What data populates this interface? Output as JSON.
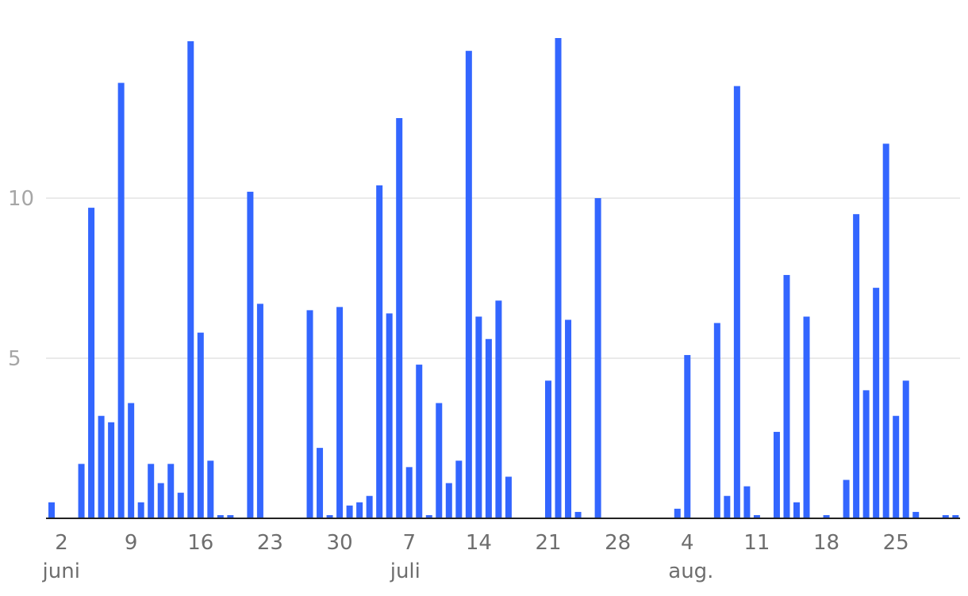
{
  "chart_data": {
    "type": "bar",
    "start_date": "2025-06-01",
    "x_ticks": [
      "2",
      "9",
      "16",
      "23",
      "30",
      "7",
      "14",
      "21",
      "28",
      "4",
      "11",
      "18",
      "25"
    ],
    "month_labels": [
      "juni",
      "juli",
      "aug."
    ],
    "y_ticks": [
      "5",
      "10"
    ],
    "ylim": [
      0,
      15
    ],
    "grid": true,
    "bar_color": "#3366ff",
    "x": [
      "2025-06-01",
      "2025-06-02",
      "2025-06-03",
      "2025-06-04",
      "2025-06-05",
      "2025-06-06",
      "2025-06-07",
      "2025-06-08",
      "2025-06-09",
      "2025-06-10",
      "2025-06-11",
      "2025-06-12",
      "2025-06-13",
      "2025-06-14",
      "2025-06-15",
      "2025-06-16",
      "2025-06-17",
      "2025-06-18",
      "2025-06-19",
      "2025-06-20",
      "2025-06-21",
      "2025-06-22",
      "2025-06-23",
      "2025-06-24",
      "2025-06-25",
      "2025-06-26",
      "2025-06-27",
      "2025-06-28",
      "2025-06-29",
      "2025-06-30",
      "2025-07-01",
      "2025-07-02",
      "2025-07-03",
      "2025-07-04",
      "2025-07-05",
      "2025-07-06",
      "2025-07-07",
      "2025-07-08",
      "2025-07-09",
      "2025-07-10",
      "2025-07-11",
      "2025-07-12",
      "2025-07-13",
      "2025-07-14",
      "2025-07-15",
      "2025-07-16",
      "2025-07-17",
      "2025-07-18",
      "2025-07-19",
      "2025-07-20",
      "2025-07-21",
      "2025-07-22",
      "2025-07-23",
      "2025-07-24",
      "2025-07-25",
      "2025-07-26",
      "2025-07-27",
      "2025-07-28",
      "2025-07-29",
      "2025-07-30",
      "2025-07-31",
      "2025-08-01",
      "2025-08-02",
      "2025-08-03",
      "2025-08-04",
      "2025-08-05",
      "2025-08-06",
      "2025-08-07",
      "2025-08-08",
      "2025-08-09",
      "2025-08-10",
      "2025-08-11",
      "2025-08-12",
      "2025-08-13",
      "2025-08-14",
      "2025-08-15",
      "2025-08-16",
      "2025-08-17",
      "2025-08-18",
      "2025-08-19",
      "2025-08-20",
      "2025-08-21",
      "2025-08-22",
      "2025-08-23",
      "2025-08-24",
      "2025-08-25",
      "2025-08-26",
      "2025-08-27",
      "2025-08-28",
      "2025-08-29",
      "2025-08-30",
      "2025-08-31"
    ],
    "values": [
      0.5,
      0,
      0,
      1.7,
      9.7,
      3.2,
      3.0,
      13.6,
      3.6,
      0.5,
      1.7,
      1.1,
      1.7,
      0.8,
      14.9,
      5.8,
      1.8,
      0.1,
      0.1,
      0,
      10.2,
      6.7,
      0,
      0,
      0,
      0,
      6.5,
      2.2,
      0.1,
      6.6,
      0.4,
      0.5,
      0.7,
      10.4,
      6.4,
      12.5,
      1.6,
      4.8,
      0.1,
      3.6,
      1.1,
      1.8,
      14.6,
      6.3,
      5.6,
      6.8,
      1.3,
      0,
      0,
      0,
      4.3,
      15.0,
      6.2,
      0.2,
      0,
      10.0,
      0,
      0,
      0,
      0,
      0,
      0,
      0,
      0.3,
      5.1,
      0,
      0,
      6.1,
      0.7,
      13.5,
      1.0,
      0.1,
      0,
      2.7,
      7.6,
      0.5,
      6.3,
      0,
      0.1,
      0,
      1.2,
      9.5,
      4.0,
      7.2,
      11.7,
      3.2,
      4.3,
      0.2,
      0,
      0,
      0.1,
      0.1
    ]
  }
}
